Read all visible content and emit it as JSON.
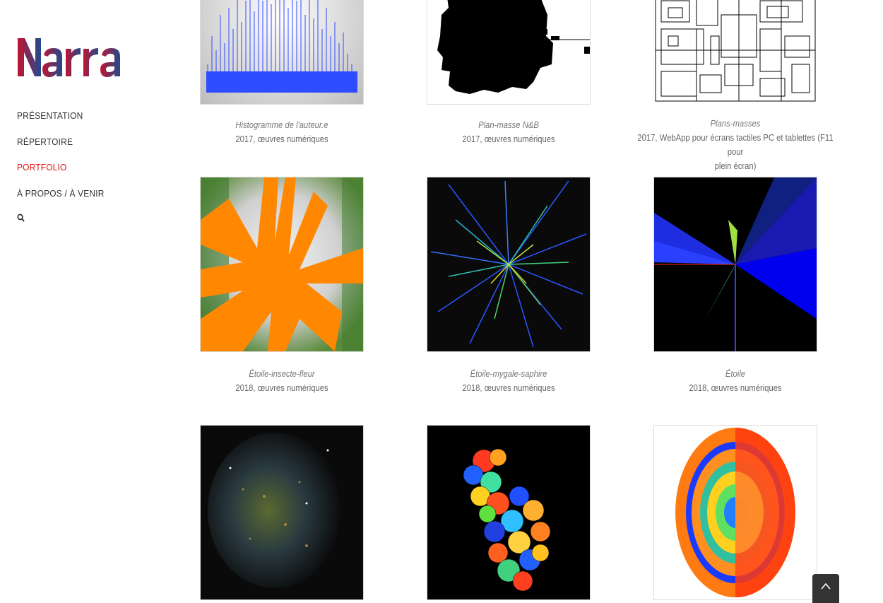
{
  "brand": {
    "logo_text": "Narra",
    "colors": {
      "gradient_start": "#c0152f",
      "gradient_end": "#1f4a8f"
    }
  },
  "nav": {
    "items": [
      {
        "label": "PRÉSENTATION"
      },
      {
        "label": "RÉPERTOIRE"
      },
      {
        "label": "PORTFOLIO",
        "active": true
      },
      {
        "label": "À PROPOS / À VENIR"
      }
    ],
    "search_icon": "search-icon",
    "active_color": "#d9120f"
  },
  "works": [
    {
      "title": "Histogramme de l'auteur.e",
      "desc": "2017, œuvres numériques"
    },
    {
      "title": "Plan-masse N&B",
      "desc": "2017, œuvres numériques"
    },
    {
      "title": "Plans-masses",
      "desc": "2017, WebApp pour écrans tactiles PC et tablettes (F11 pour",
      "desc2": "plein écran)"
    },
    {
      "title": "Étoile-insecte-fleur",
      "desc": "2018, œuvres numériques"
    },
    {
      "title": "Étoile-mygale-saphire",
      "desc": "2018, œuvres numériques"
    },
    {
      "title": "Étoile",
      "desc": "2018, œuvres numériques"
    },
    {
      "title": "",
      "desc": ""
    },
    {
      "title": "",
      "desc": ""
    },
    {
      "title": "",
      "desc": ""
    }
  ],
  "back_to_top": {
    "icon": "chevron-up-icon"
  }
}
